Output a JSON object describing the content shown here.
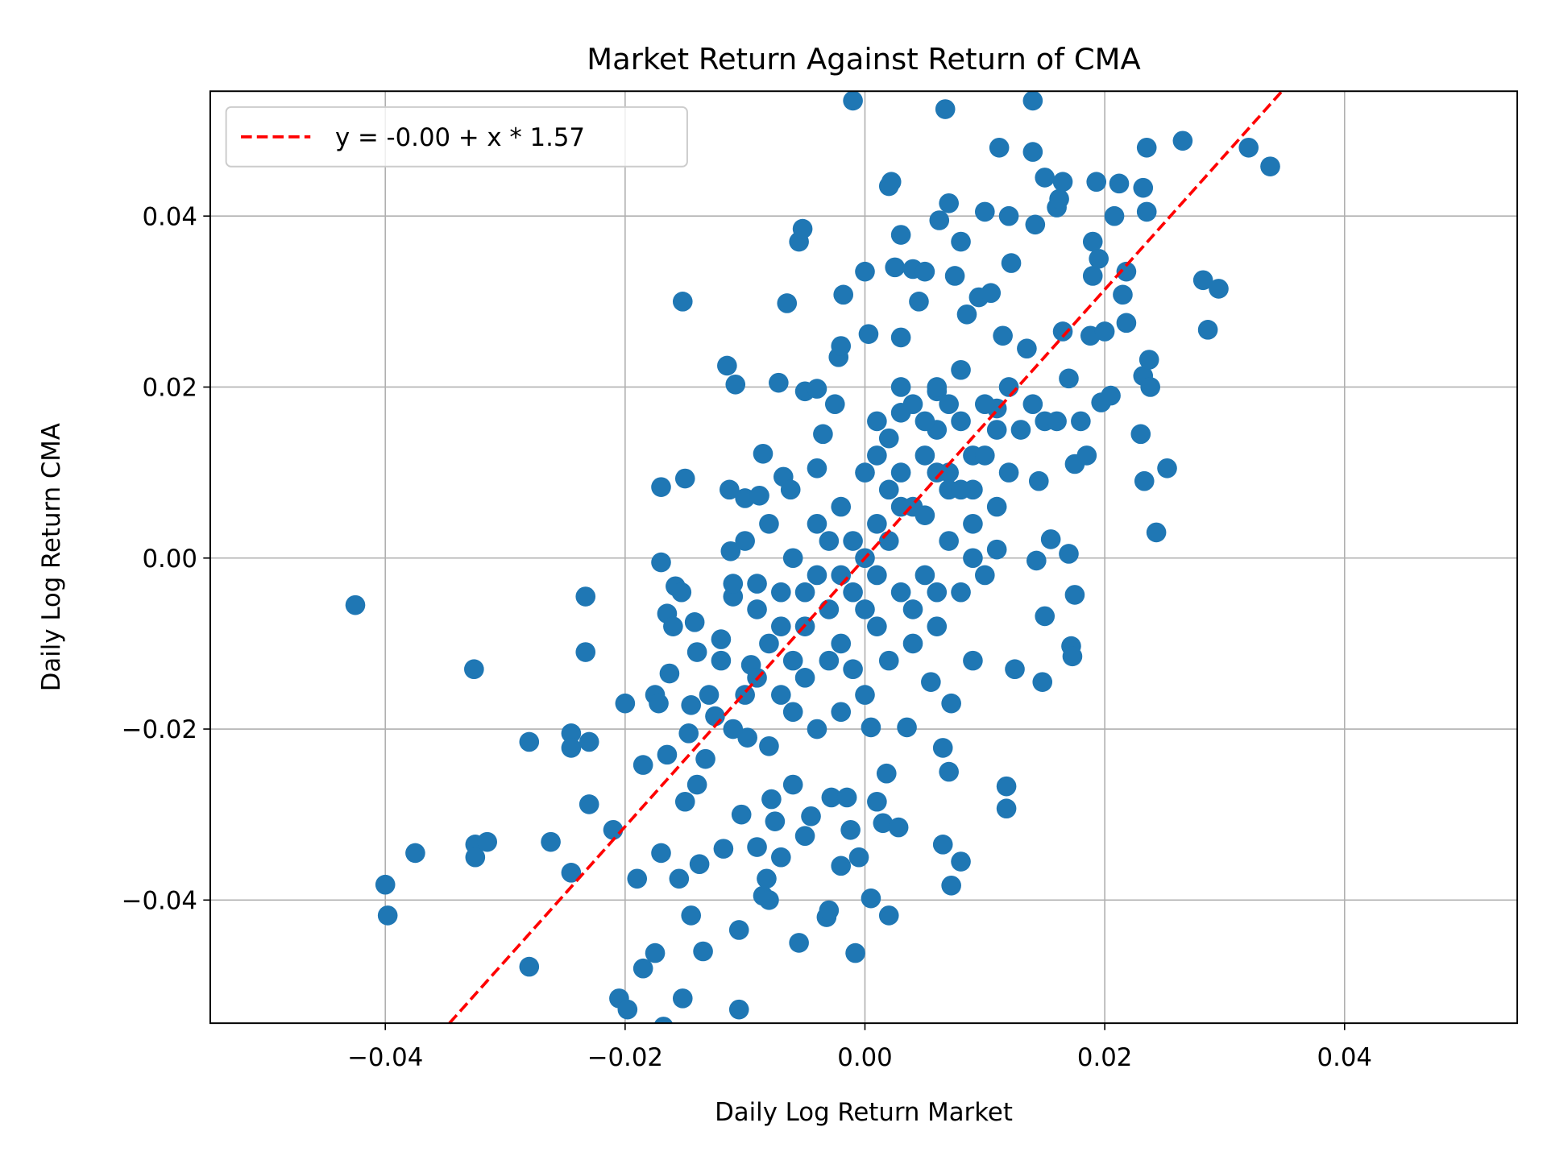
{
  "chart_data": {
    "type": "scatter",
    "title": "Market Return Against Return of CMA",
    "xlabel": "Daily Log Return Market",
    "ylabel": "Daily Log Return CMA",
    "xlim": [
      -0.0546,
      0.0544
    ],
    "ylim": [
      -0.0544,
      0.0546
    ],
    "xticks": [
      -0.04,
      -0.02,
      0.0,
      0.02,
      0.04
    ],
    "xtick_labels": [
      "−0.04",
      "−0.02",
      "0.00",
      "0.02",
      "0.04"
    ],
    "yticks": [
      -0.04,
      -0.02,
      0.0,
      0.02,
      0.04
    ],
    "ytick_labels": [
      "−0.04",
      "−0.02",
      "0.00",
      "0.02",
      "0.04"
    ],
    "grid": true,
    "legend_position": "top-left",
    "point_color": "#1f77b4",
    "fit_line": {
      "label": "y = -0.00 + x * 1.57",
      "intercept": 0.0,
      "slope": 1.57,
      "color": "#ff0000",
      "style": "dashed"
    },
    "points": [
      [
        -0.0425,
        -0.0055
      ],
      [
        -0.04,
        -0.0382
      ],
      [
        -0.0398,
        -0.0418
      ],
      [
        -0.0375,
        -0.0345
      ],
      [
        -0.0326,
        -0.013
      ],
      [
        -0.0325,
        -0.0335
      ],
      [
        -0.0325,
        -0.035
      ],
      [
        -0.0315,
        -0.0332
      ],
      [
        -0.028,
        -0.0215
      ],
      [
        -0.028,
        -0.0478
      ],
      [
        -0.0262,
        -0.0332
      ],
      [
        -0.0245,
        -0.0205
      ],
      [
        -0.0245,
        -0.0222
      ],
      [
        -0.0245,
        -0.0368
      ],
      [
        -0.0233,
        -0.0045
      ],
      [
        -0.0233,
        -0.011
      ],
      [
        -0.023,
        -0.0215
      ],
      [
        -0.023,
        -0.0288
      ],
      [
        -0.021,
        -0.0318
      ],
      [
        -0.0205,
        -0.0515
      ],
      [
        -0.02,
        -0.017
      ],
      [
        -0.0198,
        -0.0528
      ],
      [
        -0.019,
        -0.0375
      ],
      [
        -0.0185,
        -0.048
      ],
      [
        -0.0185,
        -0.0242
      ],
      [
        -0.0175,
        -0.0462
      ],
      [
        -0.0175,
        -0.016
      ],
      [
        -0.0172,
        -0.017
      ],
      [
        -0.017,
        0.0083
      ],
      [
        -0.017,
        -0.0005
      ],
      [
        -0.017,
        -0.0345
      ],
      [
        -0.0168,
        -0.0548
      ],
      [
        -0.0165,
        -0.0065
      ],
      [
        -0.0165,
        -0.023
      ],
      [
        -0.0163,
        -0.0135
      ],
      [
        -0.016,
        -0.008
      ],
      [
        -0.0158,
        -0.0033
      ],
      [
        -0.0155,
        -0.0375
      ],
      [
        -0.0153,
        -0.004
      ],
      [
        -0.0152,
        -0.0515
      ],
      [
        -0.0152,
        0.03
      ],
      [
        -0.015,
        0.0093
      ],
      [
        -0.015,
        -0.0285
      ],
      [
        -0.0147,
        -0.0205
      ],
      [
        -0.0145,
        -0.0418
      ],
      [
        -0.0145,
        -0.0172
      ],
      [
        -0.0142,
        -0.0075
      ],
      [
        -0.014,
        -0.011
      ],
      [
        -0.014,
        -0.0265
      ],
      [
        -0.0138,
        -0.0358
      ],
      [
        -0.0135,
        -0.046
      ],
      [
        -0.0133,
        -0.0235
      ],
      [
        -0.013,
        -0.0555
      ],
      [
        -0.0125,
        -0.0185
      ],
      [
        -0.012,
        -0.0095
      ],
      [
        -0.0118,
        -0.034
      ],
      [
        -0.0115,
        0.0225
      ],
      [
        -0.0113,
        0.008
      ],
      [
        -0.0112,
        0.0008
      ],
      [
        -0.011,
        -0.0045
      ],
      [
        -0.0108,
        0.0203
      ],
      [
        -0.0105,
        -0.0435
      ],
      [
        -0.0105,
        -0.0528
      ],
      [
        -0.0103,
        -0.03
      ],
      [
        -0.01,
        0.007
      ],
      [
        -0.0098,
        -0.021
      ],
      [
        -0.0095,
        -0.0125
      ],
      [
        -0.009,
        -0.0338
      ],
      [
        -0.0088,
        0.0073
      ],
      [
        -0.0085,
        -0.0395
      ],
      [
        -0.0085,
        0.0122
      ],
      [
        -0.0082,
        -0.0375
      ],
      [
        -0.008,
        -0.04
      ],
      [
        -0.0078,
        -0.0282
      ],
      [
        -0.0075,
        -0.0308
      ],
      [
        -0.0072,
        0.0205
      ],
      [
        -0.007,
        -0.035
      ],
      [
        -0.0068,
        0.0095
      ],
      [
        -0.0065,
        0.0298
      ],
      [
        -0.0062,
        0.008
      ],
      [
        -0.006,
        -0.0265
      ],
      [
        -0.0055,
        0.037
      ],
      [
        -0.0055,
        -0.045
      ],
      [
        -0.0052,
        0.0385
      ],
      [
        -0.005,
        0.0195
      ],
      [
        -0.005,
        -0.0325
      ],
      [
        -0.0045,
        -0.0302
      ],
      [
        -0.004,
        0.0105
      ],
      [
        -0.004,
        0.0198
      ],
      [
        -0.0035,
        0.0145
      ],
      [
        -0.0032,
        -0.042
      ],
      [
        -0.003,
        -0.0412
      ],
      [
        -0.0028,
        -0.028
      ],
      [
        -0.0025,
        0.018
      ],
      [
        -0.0022,
        0.0235
      ],
      [
        -0.002,
        0.0248
      ],
      [
        -0.002,
        -0.036
      ],
      [
        -0.0018,
        0.0308
      ],
      [
        -0.0015,
        -0.028
      ],
      [
        -0.0012,
        -0.0318
      ],
      [
        -0.001,
        0.0535
      ],
      [
        -0.0008,
        -0.0462
      ],
      [
        -0.0005,
        -0.035
      ],
      [
        0.0,
        0.0335
      ],
      [
        0.0003,
        0.0262
      ],
      [
        0.0005,
        -0.0198
      ],
      [
        0.0005,
        -0.0398
      ],
      [
        0.001,
        -0.0285
      ],
      [
        0.0015,
        -0.031
      ],
      [
        0.0018,
        -0.0252
      ],
      [
        0.002,
        0.0435
      ],
      [
        0.0022,
        0.044
      ],
      [
        0.002,
        -0.0418
      ],
      [
        0.0025,
        0.034
      ],
      [
        0.0028,
        -0.0315
      ],
      [
        0.003,
        0.0258
      ],
      [
        0.003,
        0.0378
      ],
      [
        0.0035,
        -0.0198
      ],
      [
        0.004,
        0.0338
      ],
      [
        0.0045,
        0.03
      ],
      [
        0.005,
        0.0335
      ],
      [
        0.0055,
        -0.0145
      ],
      [
        0.006,
        0.0195
      ],
      [
        0.0062,
        0.0395
      ],
      [
        0.0065,
        -0.0222
      ],
      [
        0.0065,
        -0.0335
      ],
      [
        0.0067,
        0.0525
      ],
      [
        0.007,
        -0.025
      ],
      [
        0.007,
        0.0415
      ],
      [
        0.0072,
        -0.0383
      ],
      [
        0.0072,
        -0.017
      ],
      [
        0.0075,
        0.033
      ],
      [
        0.008,
        0.037
      ],
      [
        0.008,
        -0.0355
      ],
      [
        0.0085,
        0.0285
      ],
      [
        0.009,
        -0.012
      ],
      [
        0.0095,
        0.0305
      ],
      [
        0.01,
        0.0405
      ],
      [
        0.0105,
        0.031
      ],
      [
        0.011,
        0.0175
      ],
      [
        0.0112,
        0.048
      ],
      [
        0.0115,
        0.026
      ],
      [
        0.0118,
        -0.0267
      ],
      [
        0.0118,
        -0.0293
      ],
      [
        0.012,
        0.04
      ],
      [
        0.0122,
        0.0345
      ],
      [
        0.0125,
        -0.013
      ],
      [
        0.0135,
        0.0245
      ],
      [
        0.014,
        0.0475
      ],
      [
        0.014,
        0.0535
      ],
      [
        0.0142,
        0.039
      ],
      [
        0.0143,
        -0.0003
      ],
      [
        0.0145,
        0.009
      ],
      [
        0.0148,
        -0.0145
      ],
      [
        0.015,
        0.0445
      ],
      [
        0.015,
        -0.0068
      ],
      [
        0.0155,
        0.0022
      ],
      [
        0.016,
        0.041
      ],
      [
        0.0162,
        0.042
      ],
      [
        0.0165,
        0.044
      ],
      [
        0.0165,
        0.0265
      ],
      [
        0.017,
        0.0005
      ],
      [
        0.0172,
        -0.0103
      ],
      [
        0.0173,
        -0.0115
      ],
      [
        0.0175,
        -0.0043
      ],
      [
        0.0175,
        0.011
      ],
      [
        0.018,
        0.016
      ],
      [
        0.0185,
        0.012
      ],
      [
        0.0188,
        0.026
      ],
      [
        0.019,
        0.033
      ],
      [
        0.019,
        0.037
      ],
      [
        0.0193,
        0.044
      ],
      [
        0.0195,
        0.035
      ],
      [
        0.0197,
        0.0182
      ],
      [
        0.02,
        0.0265
      ],
      [
        0.0205,
        0.019
      ],
      [
        0.0208,
        0.04
      ],
      [
        0.0212,
        0.0438
      ],
      [
        0.0215,
        0.0308
      ],
      [
        0.0218,
        0.0335
      ],
      [
        0.0218,
        0.0275
      ],
      [
        0.023,
        0.0145
      ],
      [
        0.0232,
        0.0213
      ],
      [
        0.0233,
        0.009
      ],
      [
        0.0232,
        0.0433
      ],
      [
        0.0235,
        0.0405
      ],
      [
        0.0235,
        0.048
      ],
      [
        0.0237,
        0.0232
      ],
      [
        0.0238,
        0.02
      ],
      [
        0.0243,
        0.003
      ],
      [
        0.0252,
        0.0105
      ],
      [
        0.0265,
        0.0488
      ],
      [
        0.0282,
        0.0325
      ],
      [
        0.0286,
        0.0267
      ],
      [
        0.0295,
        0.0315
      ],
      [
        0.032,
        0.048
      ],
      [
        0.0338,
        0.0458
      ],
      [
        -0.009,
        -0.006
      ],
      [
        -0.008,
        -0.01
      ],
      [
        -0.007,
        -0.004
      ],
      [
        -0.006,
        -0.012
      ],
      [
        -0.005,
        -0.008
      ],
      [
        -0.004,
        -0.002
      ],
      [
        -0.003,
        -0.006
      ],
      [
        -0.002,
        -0.01
      ],
      [
        -0.001,
        -0.004
      ],
      [
        0.0,
        0.0
      ],
      [
        0.001,
        0.004
      ],
      [
        0.002,
        0.008
      ],
      [
        0.003,
        0.01
      ],
      [
        0.004,
        0.006
      ],
      [
        0.005,
        0.012
      ],
      [
        0.006,
        0.015
      ],
      [
        0.007,
        0.01
      ],
      [
        0.008,
        0.016
      ],
      [
        0.009,
        0.012
      ],
      [
        0.01,
        0.018
      ],
      [
        0.011,
        0.015
      ],
      [
        0.012,
        0.02
      ],
      [
        -0.009,
        -0.014
      ],
      [
        -0.007,
        -0.016
      ],
      [
        -0.005,
        -0.014
      ],
      [
        -0.003,
        -0.012
      ],
      [
        -0.001,
        -0.013
      ],
      [
        0.001,
        -0.008
      ],
      [
        0.003,
        -0.004
      ],
      [
        0.005,
        -0.002
      ],
      [
        0.007,
        0.002
      ],
      [
        0.009,
        0.004
      ],
      [
        0.011,
        0.006
      ],
      [
        -0.01,
        0.002
      ],
      [
        -0.008,
        0.004
      ],
      [
        -0.006,
        0.0
      ],
      [
        -0.004,
        0.004
      ],
      [
        -0.002,
        0.006
      ],
      [
        0.0,
        0.01
      ],
      [
        0.002,
        0.014
      ],
      [
        0.004,
        0.018
      ],
      [
        0.006,
        0.02
      ],
      [
        0.008,
        0.022
      ],
      [
        0.01,
        0.012
      ],
      [
        0.001,
        0.016
      ],
      [
        0.003,
        0.017
      ],
      [
        0.005,
        0.016
      ],
      [
        0.007,
        0.018
      ],
      [
        0.002,
        0.002
      ],
      [
        0.004,
        -0.006
      ],
      [
        0.006,
        -0.008
      ],
      [
        0.008,
        -0.004
      ],
      [
        0.01,
        -0.002
      ],
      [
        -0.002,
        -0.018
      ],
      [
        0.0,
        -0.016
      ],
      [
        -0.004,
        -0.02
      ],
      [
        -0.006,
        -0.018
      ],
      [
        -0.008,
        -0.022
      ],
      [
        -0.01,
        -0.016
      ],
      [
        -0.012,
        -0.012
      ],
      [
        -0.011,
        -0.02
      ],
      [
        -0.013,
        -0.016
      ],
      [
        0.002,
        -0.012
      ],
      [
        0.004,
        -0.01
      ],
      [
        0.006,
        -0.004
      ],
      [
        -0.001,
        0.002
      ],
      [
        0.001,
        0.012
      ],
      [
        0.003,
        0.02
      ],
      [
        0.005,
        0.005
      ],
      [
        0.007,
        0.008
      ],
      [
        0.009,
        0.008
      ],
      [
        0.011,
        0.001
      ],
      [
        0.012,
        0.01
      ],
      [
        0.013,
        0.015
      ],
      [
        0.014,
        0.018
      ],
      [
        0.015,
        0.016
      ],
      [
        0.016,
        0.016
      ],
      [
        0.017,
        0.021
      ],
      [
        -0.003,
        0.002
      ],
      [
        -0.005,
        -0.004
      ],
      [
        -0.007,
        -0.008
      ],
      [
        -0.009,
        -0.003
      ],
      [
        -0.011,
        -0.003
      ],
      [
        0.0,
        -0.006
      ],
      [
        -0.002,
        -0.002
      ],
      [
        0.001,
        -0.002
      ],
      [
        0.003,
        0.006
      ],
      [
        0.008,
        0.008
      ],
      [
        0.009,
        0.0
      ],
      [
        0.006,
        0.01
      ]
    ]
  }
}
